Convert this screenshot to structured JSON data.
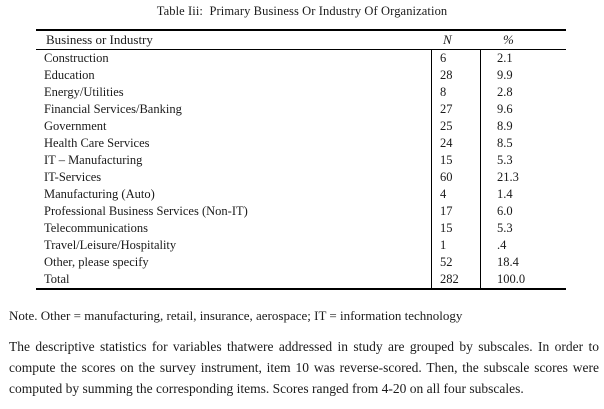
{
  "title": "Table Iii:  Primary Business Or Industry Of Organization",
  "table": {
    "columns": [
      "Business or Industry",
      "N",
      "%"
    ],
    "rows": [
      [
        "Construction",
        "6",
        "2.1"
      ],
      [
        "Education",
        "28",
        "9.9"
      ],
      [
        "Energy/Utilities",
        "8",
        "2.8"
      ],
      [
        "Financial Services/Banking",
        "27",
        "9.6"
      ],
      [
        "Government",
        "25",
        "8.9"
      ],
      [
        "Health Care Services",
        "24",
        "8.5"
      ],
      [
        "IT – Manufacturing",
        "15",
        "5.3"
      ],
      [
        "IT-Services",
        "60",
        "21.3"
      ],
      [
        "Manufacturing (Auto)",
        "4",
        "1.4"
      ],
      [
        "Professional Business Services (Non-IT)",
        "17",
        "6.0"
      ],
      [
        "Telecommunications",
        "15",
        "5.3"
      ],
      [
        "Travel/Leisure/Hospitality",
        "1",
        ".4"
      ],
      [
        "Other, please specify",
        "52",
        "18.4"
      ],
      [
        "Total",
        "282",
        "100.0"
      ]
    ]
  },
  "note": "Note. Other = manufacturing, retail, insurance, aerospace; IT = information technology",
  "paragraph": "The descriptive statistics for variables thatwere addressed in study are grouped by subscales. In order to compute the scores on the survey instrument, item 10 was reverse-scored. Then, the subscale scores were computed by summing the corresponding items. Scores ranged from 4-20 on all four subscales.",
  "colors": {
    "background": "#ffffff",
    "text": "#1a1a1a",
    "rule": "#000000"
  }
}
